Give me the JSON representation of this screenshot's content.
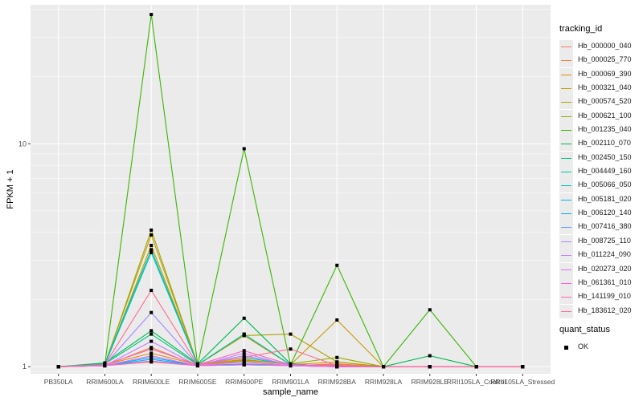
{
  "chart_data": {
    "type": "line",
    "title": "",
    "xlabel": "sample_name",
    "ylabel": "FPKM + 1",
    "y_scale": "log10",
    "y_ticks": [
      1,
      10
    ],
    "y_tick_labels": [
      "1",
      "10"
    ],
    "grid": true,
    "legend_placement": "right",
    "categories": [
      "PB350LA",
      "RRIM600LA",
      "RRIM600LE",
      "RRIM600SE",
      "RRIM600PE",
      "RRIM901LA",
      "RRIM928BA",
      "RRIM928LA",
      "RRIM928LE",
      "RRII105LA_Control",
      "RRII105LA_Stressed"
    ],
    "series": [
      {
        "name": "Hb_000000_040",
        "color": "#F8766D",
        "values": [
          1,
          1.01,
          1.05,
          1.01,
          1.03,
          1.01,
          1.02,
          1,
          1,
          1,
          1
        ]
      },
      {
        "name": "Hb_000025_770",
        "color": "#EC823C",
        "values": [
          1,
          1.01,
          1.22,
          1.01,
          1.06,
          1.01,
          1.03,
          1,
          1,
          1,
          1
        ]
      },
      {
        "name": "Hb_000069_390",
        "color": "#DC8E00",
        "values": [
          1,
          1.02,
          1.15,
          1.02,
          1.08,
          1.02,
          1.05,
          1,
          1,
          1,
          1
        ]
      },
      {
        "name": "Hb_000321_040",
        "color": "#C99800",
        "values": [
          1,
          1.03,
          3.9,
          1.02,
          1.38,
          1.02,
          1.62,
          1,
          1,
          1,
          1
        ]
      },
      {
        "name": "Hb_000574_520",
        "color": "#B3A000",
        "values": [
          1,
          1.02,
          3.5,
          1.02,
          1.38,
          1.4,
          1.05,
          1,
          1,
          1,
          1
        ]
      },
      {
        "name": "Hb_000621_100",
        "color": "#99A800",
        "values": [
          1,
          1.02,
          4.1,
          1.02,
          1.07,
          1.03,
          1.1,
          1,
          1,
          1,
          1
        ]
      },
      {
        "name": "Hb_001235_040",
        "color": "#39B600",
        "values": [
          1,
          1.02,
          38,
          1.02,
          9.5,
          1.02,
          2.85,
          1,
          1.8,
          1,
          1
        ]
      },
      {
        "name": "Hb_002110_070",
        "color": "#00BB4E",
        "values": [
          1,
          1.04,
          1.45,
          1.03,
          1.65,
          1.03,
          1,
          1,
          1.12,
          1,
          1
        ]
      },
      {
        "name": "Hb_002450_150",
        "color": "#00BF7D",
        "values": [
          1,
          1.03,
          1.4,
          1.02,
          1.4,
          1.02,
          1.01,
          1,
          1,
          1,
          1
        ]
      },
      {
        "name": "Hb_004449_160",
        "color": "#00C1A3",
        "values": [
          1,
          1.03,
          3.35,
          1.02,
          1.4,
          1.02,
          1.01,
          1,
          1,
          1,
          1
        ]
      },
      {
        "name": "Hb_005066_050",
        "color": "#00BFC4",
        "values": [
          1,
          1.02,
          3.25,
          1.02,
          1.1,
          1.02,
          1.01,
          1,
          1,
          1,
          1
        ]
      },
      {
        "name": "Hb_005181_020",
        "color": "#00B8E5",
        "values": [
          1,
          1.01,
          1.08,
          1.01,
          1.03,
          1.01,
          1,
          1,
          1,
          1,
          1
        ]
      },
      {
        "name": "Hb_006120_140",
        "color": "#00ABFD",
        "values": [
          1,
          1.01,
          1.1,
          1.01,
          1.02,
          1.01,
          1,
          1,
          1,
          1,
          1
        ]
      },
      {
        "name": "Hb_007416_380",
        "color": "#619CFF",
        "values": [
          1,
          1.01,
          1.06,
          1.01,
          1.02,
          1.01,
          1,
          1,
          1,
          1,
          1
        ]
      },
      {
        "name": "Hb_008725_110",
        "color": "#A58AFF",
        "values": [
          1,
          1.02,
          1.75,
          1.02,
          1.12,
          1.02,
          1.01,
          1,
          1,
          1,
          1
        ]
      },
      {
        "name": "Hb_011224_090",
        "color": "#C77CFF",
        "values": [
          1,
          1.01,
          1.3,
          1.01,
          1.15,
          1.01,
          1.01,
          1,
          1,
          1,
          1
        ]
      },
      {
        "name": "Hb_020273_020",
        "color": "#E76BF3",
        "values": [
          1,
          1.01,
          1.12,
          1.01,
          1.05,
          1.01,
          1,
          1,
          1,
          1,
          1
        ]
      },
      {
        "name": "Hb_061361_010",
        "color": "#FA62DB",
        "values": [
          1,
          1.01,
          1.06,
          1.01,
          1.02,
          1.01,
          1,
          1,
          1,
          1,
          1
        ]
      },
      {
        "name": "Hb_141199_010",
        "color": "#FF62BC",
        "values": [
          1,
          1.02,
          1.2,
          1.02,
          1.18,
          1.02,
          1.01,
          1,
          1,
          1,
          1
        ]
      },
      {
        "name": "Hb_183612_020",
        "color": "#FF6C91",
        "values": [
          1,
          1.02,
          2.2,
          1.02,
          1.1,
          1.2,
          1.01,
          1,
          1,
          1,
          1
        ]
      }
    ],
    "legend_title": "tracking_id",
    "point_legend_title": "quant_status",
    "point_legend_label": "OK",
    "point_color": "#000000",
    "panel_color": "#EBEBEB",
    "grid_color": "#FFFFFF"
  }
}
